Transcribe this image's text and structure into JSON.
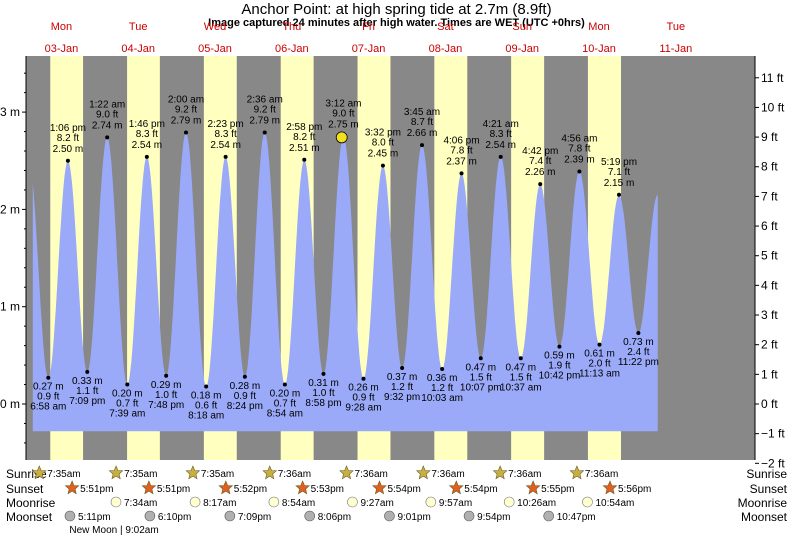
{
  "title": "Anchor Point: at high  spring tide at 2.7m (8.9ft)",
  "subtitle": "Image captured 24 minutes after high water. Times are WET (UTC +0hrs)",
  "colors": {
    "night": "#888888",
    "day": "#ffffc0",
    "tide_fill": "#9aaaf8",
    "day_label": "#cc0000",
    "current_marker": "#f0e020",
    "sun_star": "#c8b040",
    "sunset_star": "#e06020",
    "moon_circle": "#ffffd0",
    "moonset_circle": "#b0b0b0"
  },
  "days": [
    {
      "name": "Mon",
      "date": "03-Jan"
    },
    {
      "name": "Tue",
      "date": "04-Jan"
    },
    {
      "name": "Wed",
      "date": "05-Jan"
    },
    {
      "name": "Thu",
      "date": "06-Jan"
    },
    {
      "name": "Fri",
      "date": "07-Jan"
    },
    {
      "name": "Sat",
      "date": "08-Jan"
    },
    {
      "name": "Sun",
      "date": "09-Jan"
    },
    {
      "name": "Mon",
      "date": "10-Jan"
    },
    {
      "name": "Tue",
      "date": "11-Jan"
    }
  ],
  "chart_data": {
    "type": "area",
    "x_unit": "days since 03-Jan 00:00 WET",
    "left_axis": {
      "label_unit": "m",
      "ylim": [
        -0.5,
        3.6
      ],
      "ticks": [
        0,
        1,
        2,
        3
      ],
      "tick_labels": [
        "0 m",
        "1 m",
        "2 m",
        "3 m"
      ]
    },
    "right_axis": {
      "label_unit": "ft",
      "ticks": [
        -2,
        -1,
        0,
        1,
        2,
        3,
        4,
        5,
        6,
        7,
        8,
        9,
        10,
        11
      ],
      "tick_labels": [
        "−2 ft",
        "−1 ft",
        "0 ft",
        "1 ft",
        "2 ft",
        "3 ft",
        "4 ft",
        "5 ft",
        "6 ft",
        "7 ft",
        "8 ft",
        "9 ft",
        "10 ft",
        "11 ft"
      ]
    },
    "tides": [
      {
        "type": "low",
        "time": "6:58 am",
        "m": "0.27 m",
        "ft": "0.9 ft",
        "x": 0.2903,
        "y": 0.27
      },
      {
        "type": "high",
        "time": "1:06 pm",
        "m": "2.50 m",
        "ft": "8.2 ft",
        "x": 0.5458,
        "y": 2.5
      },
      {
        "type": "low",
        "time": "7:09 pm",
        "m": "0.33 m",
        "ft": "1.1 ft",
        "x": 0.7979,
        "y": 0.33
      },
      {
        "type": "high",
        "time": "1:22 am",
        "m": "2.74 m",
        "ft": "9.0 ft",
        "x": 1.0569,
        "y": 2.74
      },
      {
        "type": "low",
        "time": "7:39 am",
        "m": "0.20 m",
        "ft": "0.7 ft",
        "x": 1.3188,
        "y": 0.2
      },
      {
        "type": "high",
        "time": "1:46 pm",
        "m": "2.54 m",
        "ft": "8.3 ft",
        "x": 1.5736,
        "y": 2.54
      },
      {
        "type": "low",
        "time": "7:48 pm",
        "m": "0.29 m",
        "ft": "1.0 ft",
        "x": 1.825,
        "y": 0.29
      },
      {
        "type": "high",
        "time": "2:00 am",
        "m": "2.79 m",
        "ft": "9.2 ft",
        "x": 2.0833,
        "y": 2.79
      },
      {
        "type": "low",
        "time": "8:18 am",
        "m": "0.18 m",
        "ft": "0.6 ft",
        "x": 2.3458,
        "y": 0.18
      },
      {
        "type": "high",
        "time": "2:23 pm",
        "m": "2.54 m",
        "ft": "8.3 ft",
        "x": 2.5993,
        "y": 2.54
      },
      {
        "type": "low",
        "time": "8:24 pm",
        "m": "0.28 m",
        "ft": "0.9 ft",
        "x": 2.85,
        "y": 0.28
      },
      {
        "type": "high",
        "time": "2:36 am",
        "m": "2.79 m",
        "ft": "9.2 ft",
        "x": 3.1083,
        "y": 2.79
      },
      {
        "type": "low",
        "time": "8:54 am",
        "m": "0.20 m",
        "ft": "0.7 ft",
        "x": 3.3708,
        "y": 0.2
      },
      {
        "type": "high",
        "time": "2:58 pm",
        "m": "2.51 m",
        "ft": "8.2 ft",
        "x": 3.6236,
        "y": 2.51
      },
      {
        "type": "low",
        "time": "8:58 pm",
        "m": "0.31 m",
        "ft": "1.0 ft",
        "x": 3.8736,
        "y": 0.31
      },
      {
        "type": "high",
        "time": "3:12 am",
        "m": "2.75 m",
        "ft": "9.0 ft",
        "x": 4.1333,
        "y": 2.75
      },
      {
        "type": "low",
        "time": "9:28 am",
        "m": "0.26 m",
        "ft": "0.9 ft",
        "x": 4.3944,
        "y": 0.26
      },
      {
        "type": "high",
        "time": "3:32 pm",
        "m": "2.45 m",
        "ft": "8.0 ft",
        "x": 4.6472,
        "y": 2.45
      },
      {
        "type": "low",
        "time": "9:32 pm",
        "m": "0.37 m",
        "ft": "1.2 ft",
        "x": 4.8972,
        "y": 0.37
      },
      {
        "type": "high",
        "time": "3:45 am",
        "m": "2.66 m",
        "ft": "8.7 ft",
        "x": 5.1563,
        "y": 2.66
      },
      {
        "type": "low",
        "time": "10:03 am",
        "m": "0.36 m",
        "ft": "1.2 ft",
        "x": 5.4188,
        "y": 0.36
      },
      {
        "type": "high",
        "time": "4:06 pm",
        "m": "2.37 m",
        "ft": "7.8 ft",
        "x": 5.6708,
        "y": 2.37
      },
      {
        "type": "low",
        "time": "10:07 pm",
        "m": "0.47 m",
        "ft": "1.5 ft",
        "x": 5.9215,
        "y": 0.47
      },
      {
        "type": "high",
        "time": "4:21 am",
        "m": "2.54 m",
        "ft": "8.3 ft",
        "x": 6.1813,
        "y": 2.54
      },
      {
        "type": "low",
        "time": "10:37 am",
        "m": "0.47 m",
        "ft": "1.5 ft",
        "x": 6.4424,
        "y": 0.47
      },
      {
        "type": "high",
        "time": "4:42 pm",
        "m": "2.26 m",
        "ft": "7.4 ft",
        "x": 6.6958,
        "y": 2.26
      },
      {
        "type": "low",
        "time": "10:42 pm",
        "m": "0.59 m",
        "ft": "1.9 ft",
        "x": 6.9458,
        "y": 0.59
      },
      {
        "type": "high",
        "time": "4:56 am",
        "m": "2.39 m",
        "ft": "7.8 ft",
        "x": 7.2056,
        "y": 2.39
      },
      {
        "type": "low",
        "time": "11:13 am",
        "m": "0.61 m",
        "ft": "2.0 ft",
        "x": 7.4674,
        "y": 0.61
      },
      {
        "type": "high",
        "time": "5:19 pm",
        "m": "2.15 m",
        "ft": "7.1 ft",
        "x": 7.7215,
        "y": 2.15
      },
      {
        "type": "low",
        "time": "11:22 pm",
        "m": "0.73 m",
        "ft": "2.4 ft",
        "x": 7.9736,
        "y": 0.73
      }
    ],
    "current": {
      "x": 4.15,
      "y": 2.74
    }
  },
  "rows": {
    "sunrise": {
      "label": "Sunrise",
      "times": [
        "7:35am",
        "7:35am",
        "7:35am",
        "7:36am",
        "7:36am",
        "7:36am",
        "7:36am",
        "7:36am"
      ],
      "x": [
        0.316,
        1.316,
        2.316,
        3.3167,
        4.3167,
        5.3167,
        6.3167,
        7.3167
      ]
    },
    "sunset": {
      "label": "Sunset",
      "times": [
        "5:51pm",
        "5:51pm",
        "5:52pm",
        "5:53pm",
        "5:54pm",
        "5:54pm",
        "5:55pm",
        "5:56pm"
      ],
      "x": [
        0.7431,
        1.7431,
        2.7444,
        3.7451,
        4.7458,
        5.7458,
        6.7465,
        7.7472
      ]
    },
    "moonrise": {
      "label": "Moonrise",
      "times": [
        "7:34am",
        "8:17am",
        "8:54am",
        "9:27am",
        "9:57am",
        "10:26am",
        "10:54am"
      ],
      "x": [
        1.3153,
        2.3451,
        3.3708,
        4.3938,
        5.4146,
        6.4347,
        7.4542
      ]
    },
    "moonset": {
      "label": "Moonset",
      "times": [
        "5:11pm",
        "6:10pm",
        "7:09pm",
        "8:06pm",
        "9:01pm",
        "9:54pm",
        "10:47pm"
      ],
      "x": [
        0.716,
        1.7569,
        2.7979,
        3.8375,
        4.8757,
        5.9125,
        6.9493
      ]
    },
    "new_moon": "New Moon | 9:02am"
  }
}
